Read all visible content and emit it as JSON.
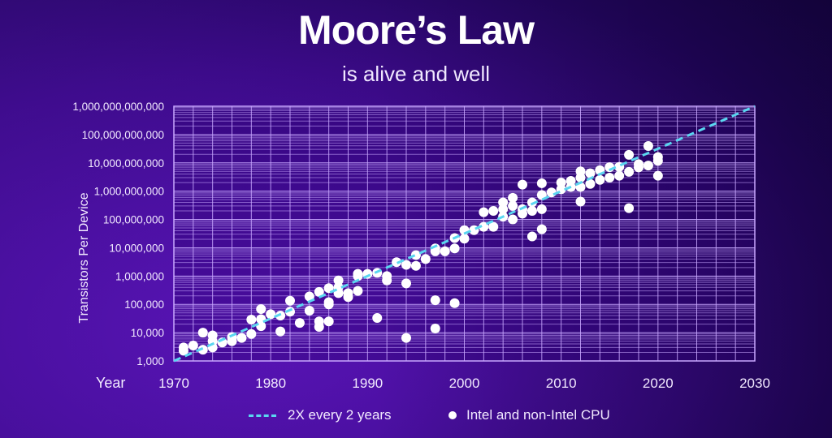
{
  "title": "Moore’s Law",
  "subtitle": "is alive and well",
  "colors": {
    "trend_line": "#5ad6f0",
    "points": "#ffffff",
    "grid": "#c9a8ff"
  },
  "legend": {
    "trend_label": "2X every 2 years",
    "points_label": "Intel and non-Intel CPU"
  },
  "chart_data": {
    "type": "scatter",
    "title": "Moore’s Law",
    "subtitle": "is alive and well",
    "xlabel": "Year",
    "ylabel": "Transistors Per Device",
    "y_scale": "log",
    "xlim": [
      1970,
      2030
    ],
    "ylim": [
      1000,
      1000000000000
    ],
    "grid": true,
    "legend_position": "bottom",
    "x_ticks": [
      "1970",
      "1980",
      "1990",
      "2000",
      "2010",
      "2020",
      "2030"
    ],
    "y_ticks": [
      "1,000",
      "10,000",
      "100,000",
      "1,000,000",
      "10,000,000",
      "100,000,000",
      "1,000,000,000",
      "10,000,000,000",
      "100,000,000,000",
      "1,000,000,000,000"
    ],
    "series": [
      {
        "name": "2X every 2 years",
        "type": "line",
        "style": "dashed",
        "points": [
          [
            1970,
            1000
          ],
          [
            2030,
            1000000000000
          ]
        ]
      },
      {
        "name": "Intel and non-Intel CPU",
        "type": "scatter",
        "points": [
          [
            1971,
            2300
          ],
          [
            1971,
            3000
          ],
          [
            1972,
            3500
          ],
          [
            1973,
            2500
          ],
          [
            1973,
            10000
          ],
          [
            1974,
            3000
          ],
          [
            1974,
            5000
          ],
          [
            1974,
            8000
          ],
          [
            1975,
            4500
          ],
          [
            1976,
            5000
          ],
          [
            1976,
            7000
          ],
          [
            1977,
            6500
          ],
          [
            1978,
            9000
          ],
          [
            1978,
            29000
          ],
          [
            1979,
            17000
          ],
          [
            1979,
            30000
          ],
          [
            1979,
            68000
          ],
          [
            1980,
            45000
          ],
          [
            1981,
            11000
          ],
          [
            1981,
            40000
          ],
          [
            1982,
            55000
          ],
          [
            1982,
            134000
          ],
          [
            1983,
            22000
          ],
          [
            1984,
            60000
          ],
          [
            1984,
            190000
          ],
          [
            1985,
            16000
          ],
          [
            1985,
            25000
          ],
          [
            1985,
            275000
          ],
          [
            1986,
            25000
          ],
          [
            1986,
            100000
          ],
          [
            1986,
            120000
          ],
          [
            1986,
            375000
          ],
          [
            1987,
            250000
          ],
          [
            1987,
            400000
          ],
          [
            1987,
            700000
          ],
          [
            1988,
            180000
          ],
          [
            1988,
            250000
          ],
          [
            1989,
            300000
          ],
          [
            1989,
            1000000
          ],
          [
            1989,
            1200000
          ],
          [
            1990,
            1200000
          ],
          [
            1991,
            1300000
          ],
          [
            1991,
            33000
          ],
          [
            1992,
            700000
          ],
          [
            1992,
            1000000
          ],
          [
            1993,
            3100000
          ],
          [
            1994,
            2500000
          ],
          [
            1994,
            550000
          ],
          [
            1994,
            6500
          ],
          [
            1995,
            2300000
          ],
          [
            1995,
            5500000
          ],
          [
            1996,
            4000000
          ],
          [
            1997,
            7500000
          ],
          [
            1997,
            9500000
          ],
          [
            1997,
            140000
          ],
          [
            1997,
            14000
          ],
          [
            1998,
            7500000
          ],
          [
            1999,
            9500000
          ],
          [
            1999,
            22000000
          ],
          [
            1999,
            110000
          ],
          [
            2000,
            21000000
          ],
          [
            2000,
            42000000
          ],
          [
            2001,
            42000000
          ],
          [
            2002,
            55000000
          ],
          [
            2002,
            180000000
          ],
          [
            2003,
            200000000
          ],
          [
            2003,
            55000000
          ],
          [
            2004,
            125000000
          ],
          [
            2004,
            230000000
          ],
          [
            2004,
            400000000
          ],
          [
            2005,
            100000000
          ],
          [
            2005,
            300000000
          ],
          [
            2005,
            580000000
          ],
          [
            2006,
            160000000
          ],
          [
            2006,
            230000000
          ],
          [
            2006,
            1700000000
          ],
          [
            2007,
            200000000
          ],
          [
            2007,
            400000000
          ],
          [
            2007,
            25000000
          ],
          [
            2008,
            230000000
          ],
          [
            2008,
            730000000
          ],
          [
            2008,
            1900000000
          ],
          [
            2008,
            45000000
          ],
          [
            2009,
            900000000
          ],
          [
            2010,
            1170000000
          ],
          [
            2010,
            2000000000
          ],
          [
            2011,
            1400000000
          ],
          [
            2011,
            2300000000
          ],
          [
            2012,
            1400000000
          ],
          [
            2012,
            3000000000
          ],
          [
            2012,
            5000000000
          ],
          [
            2012,
            430000000
          ],
          [
            2013,
            1800000000
          ],
          [
            2013,
            4300000000
          ],
          [
            2014,
            2500000000
          ],
          [
            2014,
            5500000000
          ],
          [
            2015,
            3000000000
          ],
          [
            2015,
            7000000000
          ],
          [
            2016,
            3500000000
          ],
          [
            2016,
            7200000000
          ],
          [
            2017,
            4800000000
          ],
          [
            2017,
            19200000000
          ],
          [
            2017,
            250000000
          ],
          [
            2018,
            6900000000
          ],
          [
            2018,
            9000000000
          ],
          [
            2019,
            8000000000
          ],
          [
            2019,
            39500000000
          ],
          [
            2020,
            16000000000
          ],
          [
            2020,
            11800000000
          ],
          [
            2020,
            3500000000
          ]
        ]
      }
    ]
  }
}
